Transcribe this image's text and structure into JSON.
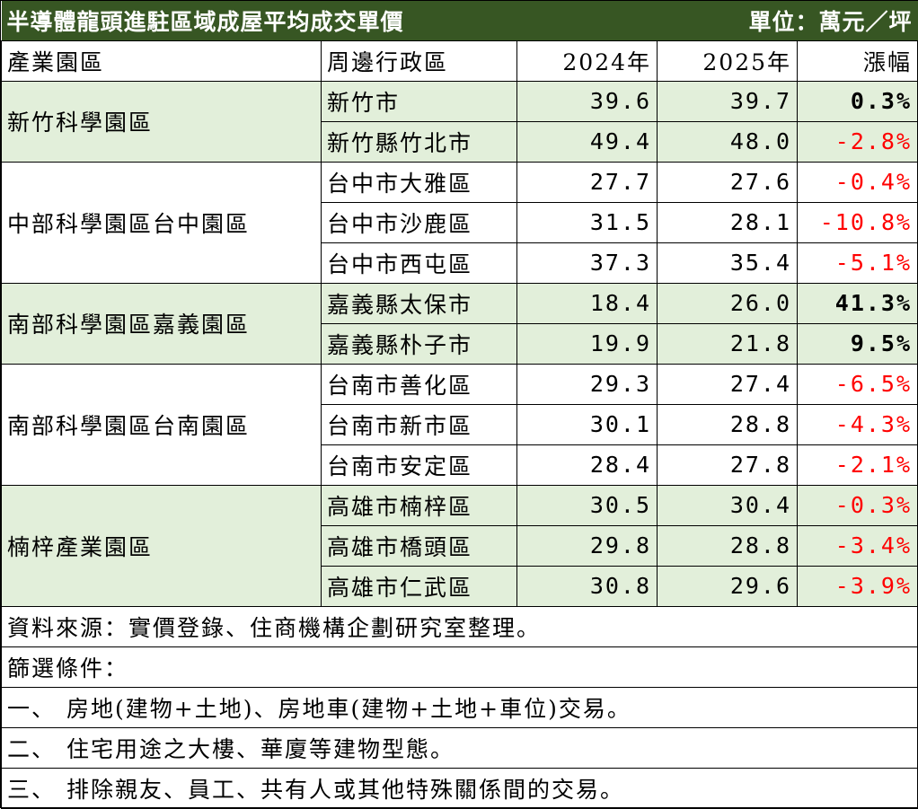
{
  "title": "半導體龍頭進駐區域成屋平均成交單價",
  "unit": "單位：萬元／坪",
  "headers": {
    "park": "產業園區",
    "district": "周邊行政區",
    "y2024": "2024年",
    "y2025": "2025年",
    "change": "漲幅"
  },
  "groups": [
    {
      "park": "新竹科學園區",
      "rows": [
        {
          "district": "新竹市",
          "y2024": "39.6",
          "y2025": "39.7",
          "change": "0.3%"
        },
        {
          "district": "新竹縣竹北市",
          "y2024": "49.4",
          "y2025": "48.0",
          "change": "-2.8%"
        }
      ]
    },
    {
      "park": "中部科學園區台中園區",
      "rows": [
        {
          "district": "台中市大雅區",
          "y2024": "27.7",
          "y2025": "27.6",
          "change": "-0.4%"
        },
        {
          "district": "台中市沙鹿區",
          "y2024": "31.5",
          "y2025": "28.1",
          "change": "-10.8%"
        },
        {
          "district": "台中市西屯區",
          "y2024": "37.3",
          "y2025": "35.4",
          "change": "-5.1%"
        }
      ]
    },
    {
      "park": "南部科學園區嘉義園區",
      "rows": [
        {
          "district": "嘉義縣太保市",
          "y2024": "18.4",
          "y2025": "26.0",
          "change": "41.3%"
        },
        {
          "district": "嘉義縣朴子市",
          "y2024": "19.9",
          "y2025": "21.8",
          "change": "9.5%"
        }
      ]
    },
    {
      "park": "南部科學園區台南園區",
      "rows": [
        {
          "district": "台南市善化區",
          "y2024": "29.3",
          "y2025": "27.4",
          "change": "-6.5%"
        },
        {
          "district": "台南市新市區",
          "y2024": "30.1",
          "y2025": "28.8",
          "change": "-4.3%"
        },
        {
          "district": "台南市安定區",
          "y2024": "28.4",
          "y2025": "27.8",
          "change": "-2.1%"
        }
      ]
    },
    {
      "park": "楠梓產業園區",
      "rows": [
        {
          "district": "高雄市楠梓區",
          "y2024": "30.5",
          "y2025": "30.4",
          "change": "-0.3%"
        },
        {
          "district": "高雄市橋頭區",
          "y2024": "29.8",
          "y2025": "28.8",
          "change": "-3.4%"
        },
        {
          "district": "高雄市仁武區",
          "y2024": "30.8",
          "y2025": "29.6",
          "change": "-3.9%"
        }
      ]
    }
  ],
  "notes": {
    "source": "資料來源：實價登錄、住商機構企劃研究室整理。",
    "filter_title": "篩選條件：",
    "items": [
      {
        "marker": "一、",
        "text": "房地(建物+土地)、房地車(建物+土地+車位)交易。"
      },
      {
        "marker": "二、",
        "text": "住宅用途之大樓、華廈等建物型態。"
      },
      {
        "marker": "三、",
        "text": "排除親友、員工、共有人或其他特殊關係間的交易。"
      }
    ]
  }
}
